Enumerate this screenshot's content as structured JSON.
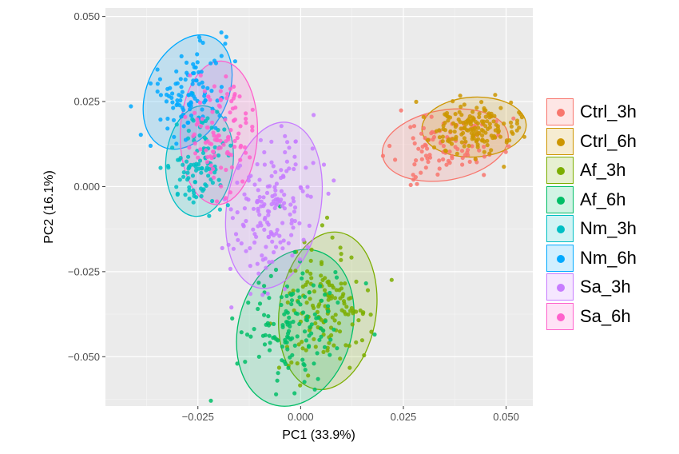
{
  "chart_data": {
    "type": "scatter",
    "xlabel": "PC1 (33.9%)",
    "ylabel": "PC2 (16.1%)",
    "xlim": [
      -0.0475,
      0.0565
    ],
    "ylim": [
      -0.0645,
      0.0525
    ],
    "xticks": [
      -0.025,
      0.0,
      0.025,
      0.05
    ],
    "xtick_labels": [
      "−0.025",
      "0.000",
      "0.025",
      "0.050"
    ],
    "yticks": [
      -0.05,
      -0.025,
      0.0,
      0.025,
      0.05
    ],
    "ytick_labels": [
      "−0.050",
      "−0.025",
      "0.000",
      "0.025",
      "0.050"
    ],
    "grid": true,
    "legend_position": "right",
    "series": [
      {
        "name": "Ctrl_3h",
        "color": "#F8766D",
        "ellipse": {
          "cx": 0.0352,
          "cy": 0.0122,
          "rx": 0.0155,
          "ry": 0.0103,
          "angle": -10
        },
        "points": 100,
        "seed": 11
      },
      {
        "name": "Ctrl_6h",
        "color": "#CD9600",
        "ellipse": {
          "cx": 0.0422,
          "cy": 0.0175,
          "rx": 0.0127,
          "ry": 0.0088,
          "angle": -3
        },
        "points": 160,
        "seed": 23
      },
      {
        "name": "Af_3h",
        "color": "#7CAE00",
        "ellipse": {
          "cx": 0.0066,
          "cy": -0.0365,
          "rx": 0.0118,
          "ry": 0.0233,
          "angle": 8
        },
        "points": 150,
        "seed": 37
      },
      {
        "name": "Af_6h",
        "color": "#00BE67",
        "ellipse": {
          "cx": -0.0013,
          "cy": -0.0415,
          "rx": 0.0138,
          "ry": 0.0235,
          "angle": 16
        },
        "points": 140,
        "seed": 41
      },
      {
        "name": "Nm_3h",
        "color": "#00BFC4",
        "ellipse": {
          "cx": -0.0246,
          "cy": 0.0075,
          "rx": 0.0082,
          "ry": 0.0163,
          "angle": 5
        },
        "points": 110,
        "seed": 53
      },
      {
        "name": "Nm_6h",
        "color": "#00A9FF",
        "ellipse": {
          "cx": -0.0275,
          "cy": 0.0278,
          "rx": 0.0098,
          "ry": 0.0177,
          "angle": 25
        },
        "points": 110,
        "seed": 67
      },
      {
        "name": "Sa_3h",
        "color": "#C77CFF",
        "ellipse": {
          "cx": -0.0065,
          "cy": -0.0055,
          "rx": 0.0114,
          "ry": 0.0247,
          "angle": 10
        },
        "points": 170,
        "seed": 79
      },
      {
        "name": "Sa_6h",
        "color": "#FF61CC",
        "ellipse": {
          "cx": -0.0199,
          "cy": 0.0158,
          "rx": 0.0094,
          "ry": 0.0211,
          "angle": 2
        },
        "points": 110,
        "seed": 83
      }
    ]
  }
}
